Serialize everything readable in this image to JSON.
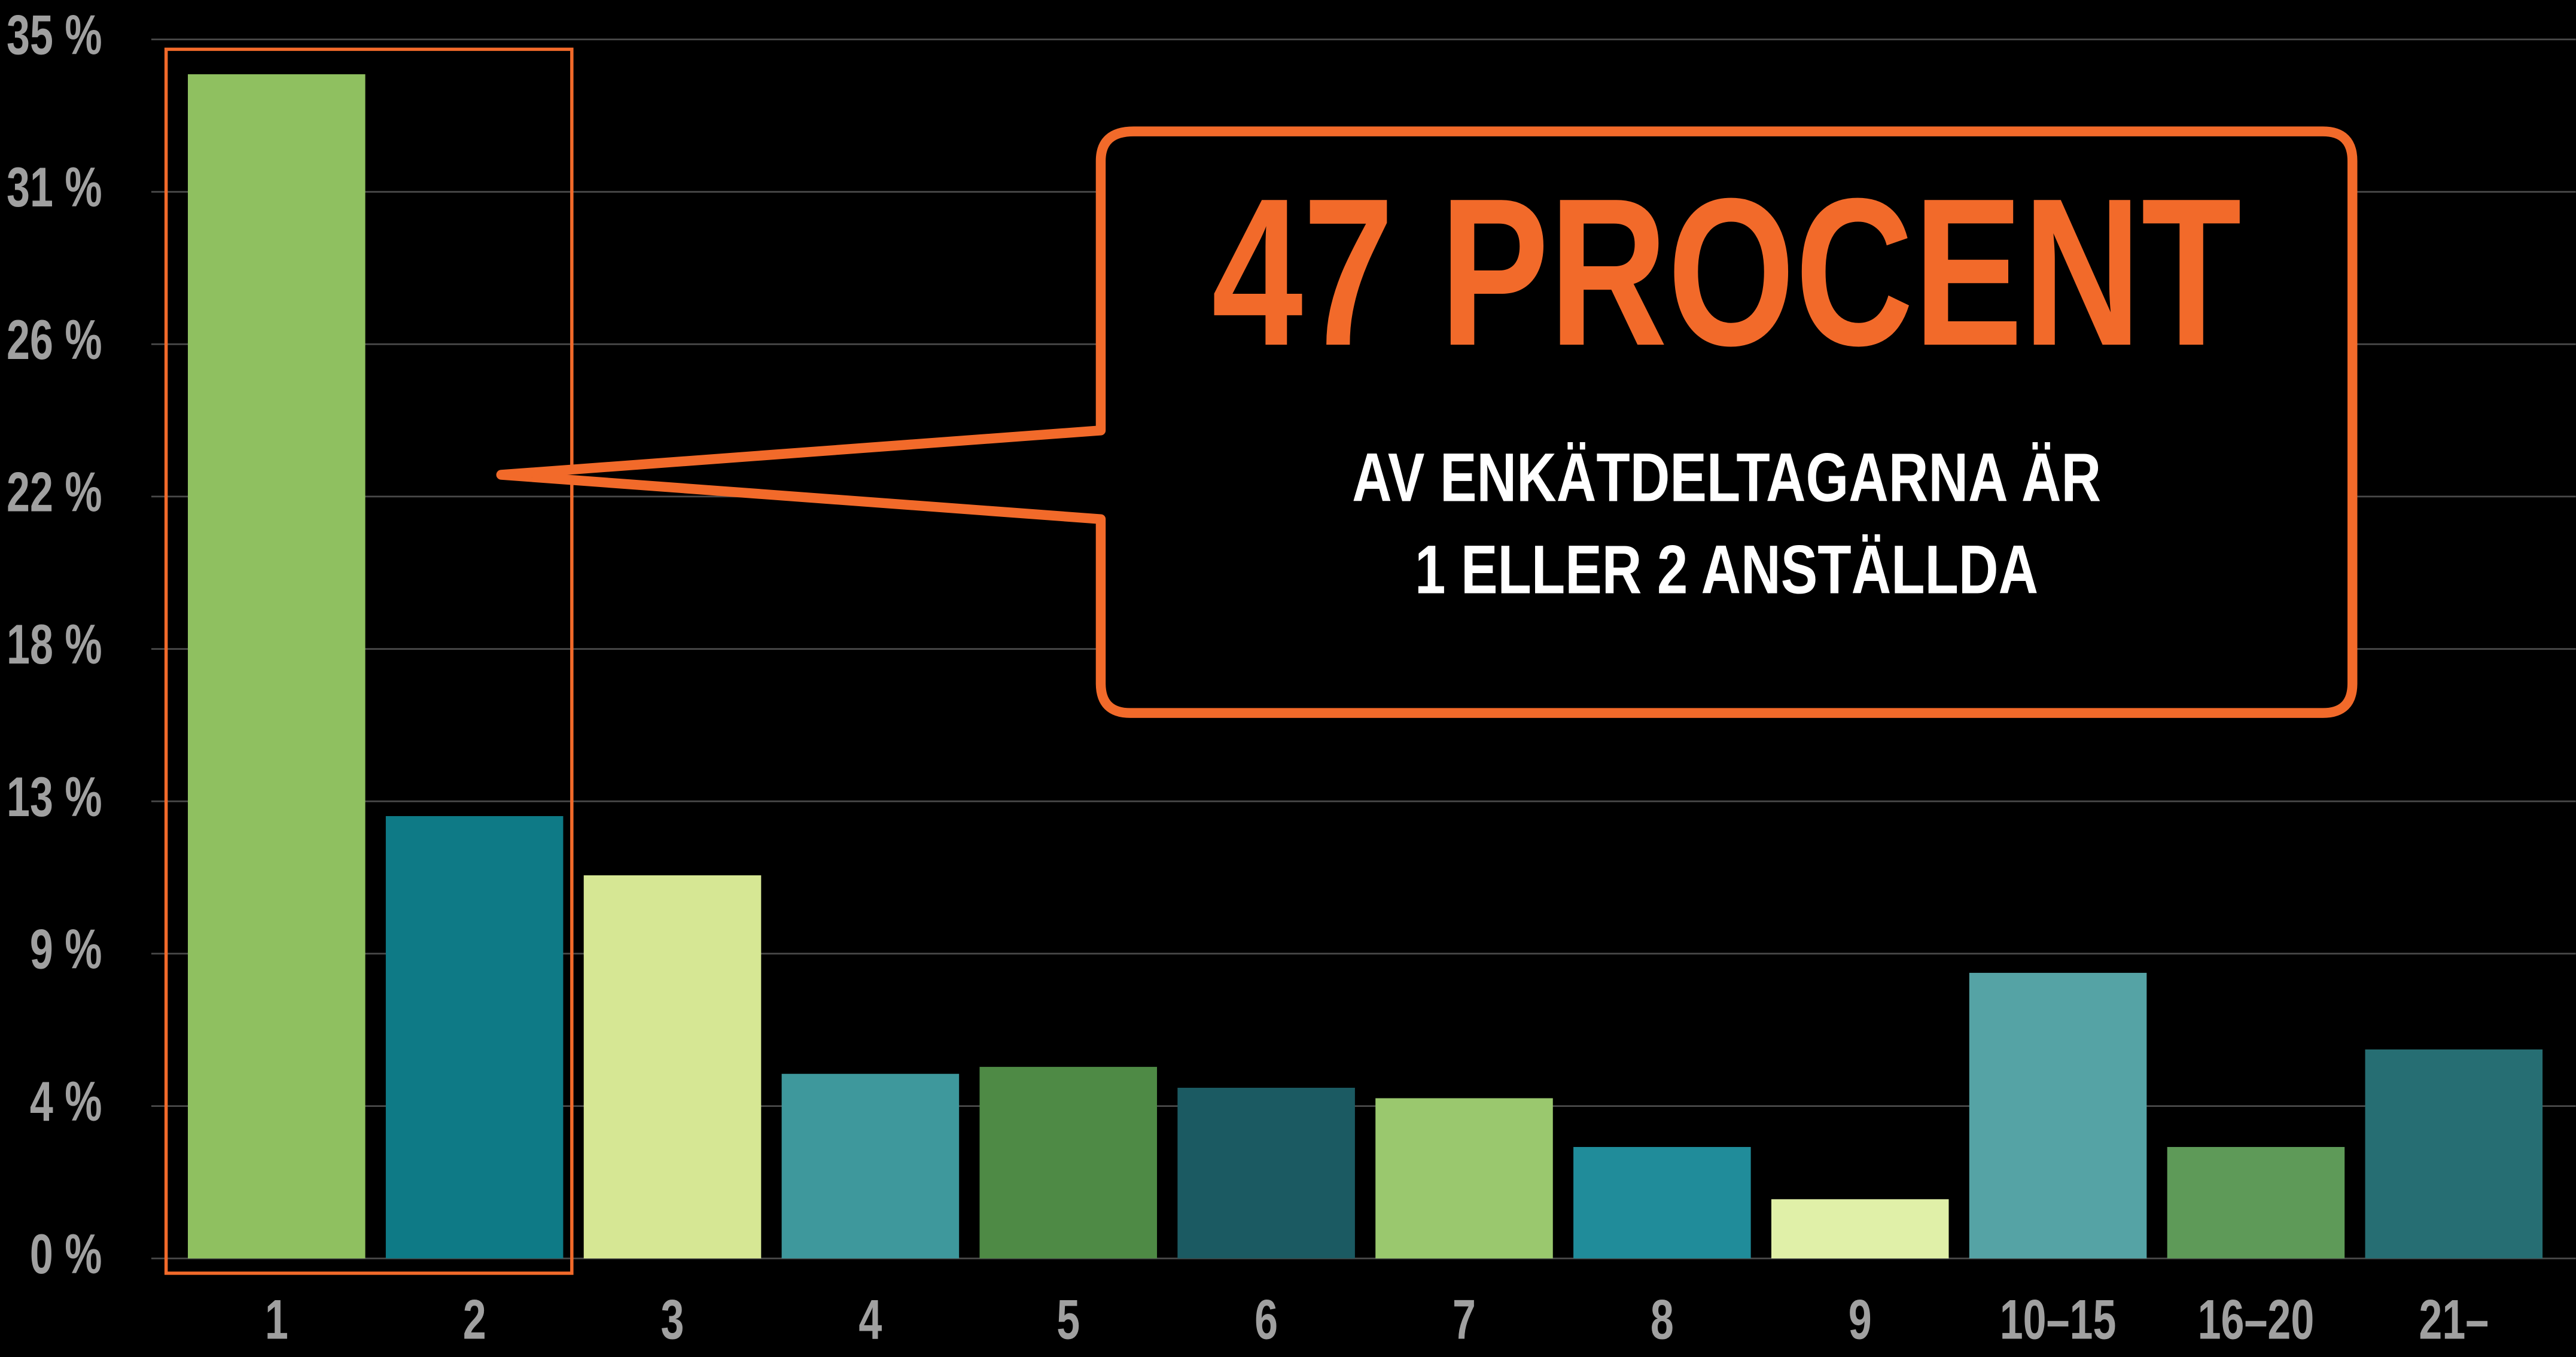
{
  "chart_data": {
    "type": "bar",
    "categories": [
      "1",
      "2",
      "3",
      "4",
      "5",
      "6",
      "7",
      "8",
      "9",
      "10–15",
      "16–20",
      "21–"
    ],
    "values": [
      34.0,
      12.7,
      11.0,
      5.3,
      5.5,
      4.9,
      4.6,
      3.2,
      1.7,
      8.2,
      3.2,
      6.0
    ],
    "colors": [
      "#8fc060",
      "#0e7a86",
      "#d6e794",
      "#3e989c",
      "#4e8a45",
      "#1b5a62",
      "#9ac86e",
      "#208c9a",
      "#e0f0a8",
      "#55a3a5",
      "#5e9a58",
      "#266e73"
    ],
    "ylim": [
      0,
      35
    ],
    "yticks": [
      {
        "value": 0,
        "label": "0 %"
      },
      {
        "value": 4.375,
        "label": "4 %"
      },
      {
        "value": 8.75,
        "label": "9 %"
      },
      {
        "value": 13.125,
        "label": "13 %"
      },
      {
        "value": 17.5,
        "label": "18 %"
      },
      {
        "value": 21.875,
        "label": "22 %"
      },
      {
        "value": 26.25,
        "label": "26 %"
      },
      {
        "value": 30.625,
        "label": "31 %"
      },
      {
        "value": 35,
        "label": "35 %"
      }
    ],
    "grid": true,
    "annotation": {
      "headline": "47 PROCENT",
      "lines": [
        "AV ENKÄTDELTAGARNA ÄR",
        "1 ELLER 2 ANSTÄLLDA"
      ]
    }
  }
}
